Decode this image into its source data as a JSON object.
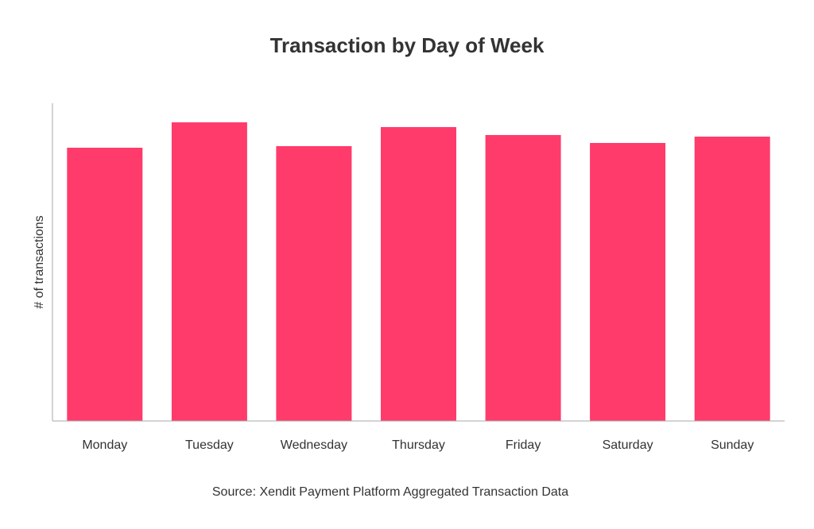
{
  "chart_data": {
    "type": "bar",
    "title": "Transaction by Day of Week",
    "xlabel": "",
    "ylabel": "# of transactions",
    "categories": [
      "Monday",
      "Tuesday",
      "Wednesday",
      "Thursday",
      "Friday",
      "Saturday",
      "Sunday"
    ],
    "values": [
      86,
      94,
      86.5,
      92.5,
      90,
      87.5,
      89.5
    ],
    "ylim": [
      0,
      100
    ],
    "grid": false,
    "legend": "none",
    "y_ticks_shown": false,
    "bar_color": "#FF3B6B",
    "axis_color": "#AAAAAA"
  },
  "source": "Source: Xendit Payment Platform Aggregated Transaction Data"
}
